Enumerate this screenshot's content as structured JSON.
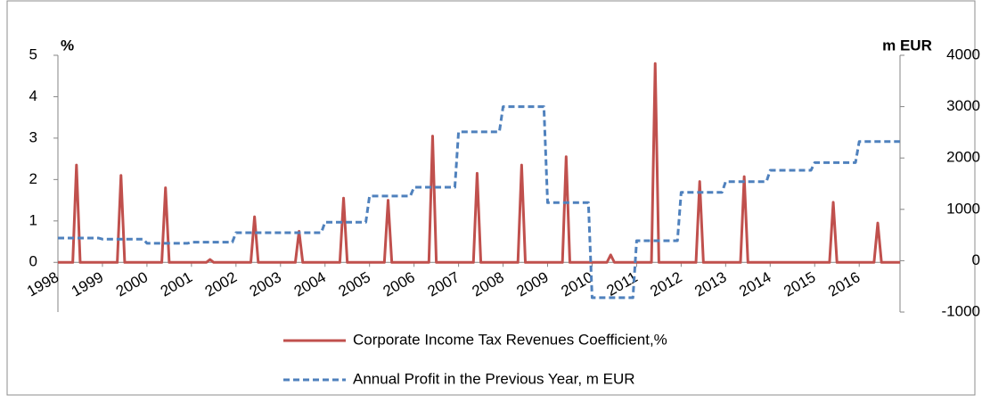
{
  "chart_data": {
    "type": "line",
    "y_label": "%",
    "y2_label": "m EUR",
    "categories": [
      "1998",
      null,
      null,
      null,
      null,
      null,
      null,
      null,
      null,
      null,
      null,
      null,
      "1999",
      null,
      null,
      null,
      null,
      null,
      null,
      null,
      null,
      null,
      null,
      null,
      "2000",
      null,
      null,
      null,
      null,
      null,
      null,
      null,
      null,
      null,
      null,
      null,
      "2001",
      null,
      null,
      null,
      null,
      null,
      null,
      null,
      null,
      null,
      null,
      null,
      "2002",
      null,
      null,
      null,
      null,
      null,
      null,
      null,
      null,
      null,
      null,
      null,
      "2003",
      null,
      null,
      null,
      null,
      null,
      null,
      null,
      null,
      null,
      null,
      null,
      "2004",
      null,
      null,
      null,
      null,
      null,
      null,
      null,
      null,
      null,
      null,
      null,
      "2005",
      null,
      null,
      null,
      null,
      null,
      null,
      null,
      null,
      null,
      null,
      null,
      "2006",
      null,
      null,
      null,
      null,
      null,
      null,
      null,
      null,
      null,
      null,
      null,
      "2007",
      null,
      null,
      null,
      null,
      null,
      null,
      null,
      null,
      null,
      null,
      null,
      "2008",
      null,
      null,
      null,
      null,
      null,
      null,
      null,
      null,
      null,
      null,
      null,
      "2009",
      null,
      null,
      null,
      null,
      null,
      null,
      null,
      null,
      null,
      null,
      null,
      "2010",
      null,
      null,
      null,
      null,
      null,
      null,
      null,
      null,
      null,
      null,
      null,
      "2011",
      null,
      null,
      null,
      null,
      null,
      null,
      null,
      null,
      null,
      null,
      null,
      "2012",
      null,
      null,
      null,
      null,
      null,
      null,
      null,
      null,
      null,
      null,
      null,
      "2013",
      null,
      null,
      null,
      null,
      null,
      null,
      null,
      null,
      null,
      null,
      null,
      "2014",
      null,
      null,
      null,
      null,
      null,
      null,
      null,
      null,
      null,
      null,
      null,
      "2015",
      null,
      null,
      null,
      null,
      null,
      null,
      null,
      null,
      null,
      null,
      null,
      "2016",
      null,
      null,
      null,
      null,
      null,
      null,
      null,
      null,
      null,
      null,
      null
    ],
    "series": [
      {
        "name": "Corporate Income Tax Revenues Coefficient,%",
        "color": "#c0504d",
        "dashed": false,
        "axis": "y",
        "values": [
          0,
          0,
          0,
          0,
          0,
          2.35,
          0,
          0,
          0,
          0,
          0,
          0,
          0,
          0,
          0,
          0,
          0,
          2.1,
          0,
          0,
          0,
          0,
          0,
          0,
          0,
          0,
          0,
          0,
          0,
          1.8,
          0,
          0,
          0,
          0,
          0,
          0,
          0,
          0,
          0,
          0,
          0,
          0.07,
          0,
          0,
          0,
          0,
          0,
          0,
          0,
          0,
          0,
          0,
          0,
          1.1,
          0,
          0,
          0,
          0,
          0,
          0,
          0,
          0,
          0,
          0,
          0,
          0.75,
          0,
          0,
          0,
          0,
          0,
          0,
          0,
          0,
          0,
          0,
          0,
          1.55,
          0,
          0,
          0,
          0,
          0,
          0,
          0,
          0,
          0,
          0,
          0,
          1.5,
          0,
          0,
          0,
          0,
          0,
          0,
          0,
          0,
          0,
          0,
          0,
          3.05,
          0,
          0,
          0,
          0,
          0,
          0,
          0,
          0,
          0,
          0,
          0,
          2.15,
          0,
          0,
          0,
          0,
          0,
          0,
          0,
          0,
          0,
          0,
          0,
          2.35,
          0,
          0,
          0,
          0,
          0,
          0,
          0,
          0,
          0,
          0,
          0,
          2.55,
          0,
          0,
          0,
          0,
          0,
          0,
          0,
          0,
          0,
          0,
          0,
          0.18,
          0,
          0,
          0,
          0,
          0,
          0,
          0,
          0,
          0,
          0,
          0,
          4.8,
          0,
          0,
          0,
          0,
          0,
          0,
          0,
          0,
          0,
          0,
          0,
          1.95,
          0,
          0,
          0,
          0,
          0,
          0,
          0,
          0,
          0,
          0,
          0,
          2.07,
          0,
          0,
          0,
          0,
          0,
          0,
          0,
          0,
          0,
          0,
          0,
          0,
          0,
          0,
          0,
          0,
          0,
          0,
          0,
          0,
          0,
          0,
          0,
          1.45,
          0,
          0,
          0,
          0,
          0,
          0,
          0,
          0,
          0,
          0,
          0,
          0.95,
          0,
          0,
          0,
          0,
          0,
          0
        ]
      },
      {
        "name": "Annual Profit in the Previous Year, m EUR",
        "color": "#4f81bd",
        "dashed": true,
        "axis": "y2",
        "values": [
          440,
          440,
          440,
          440,
          440,
          440,
          440,
          440,
          440,
          440,
          440,
          440,
          420,
          420,
          420,
          420,
          420,
          420,
          420,
          420,
          420,
          420,
          420,
          420,
          340,
          340,
          340,
          340,
          340,
          340,
          340,
          340,
          340,
          340,
          340,
          340,
          360,
          360,
          360,
          360,
          360,
          360,
          360,
          360,
          360,
          360,
          360,
          360,
          545,
          545,
          545,
          545,
          545,
          545,
          545,
          545,
          545,
          545,
          545,
          545,
          545,
          545,
          545,
          545,
          545,
          545,
          545,
          545,
          545,
          545,
          545,
          545,
          750,
          750,
          750,
          750,
          750,
          750,
          750,
          750,
          750,
          750,
          750,
          750,
          1260,
          1260,
          1260,
          1260,
          1260,
          1260,
          1260,
          1260,
          1260,
          1260,
          1260,
          1260,
          1430,
          1430,
          1430,
          1430,
          1430,
          1430,
          1430,
          1430,
          1430,
          1430,
          1430,
          1430,
          2510,
          2510,
          2510,
          2510,
          2510,
          2510,
          2510,
          2510,
          2510,
          2510,
          2510,
          2510,
          3000,
          3000,
          3000,
          3000,
          3000,
          3000,
          3000,
          3000,
          3000,
          3000,
          3000,
          3000,
          1130,
          1130,
          1130,
          1130,
          1130,
          1130,
          1130,
          1130,
          1130,
          1130,
          1130,
          1130,
          -720,
          -720,
          -720,
          -720,
          -720,
          -720,
          -720,
          -720,
          -720,
          -720,
          -720,
          -720,
          390,
          390,
          390,
          390,
          390,
          390,
          390,
          390,
          390,
          390,
          390,
          390,
          1330,
          1330,
          1330,
          1330,
          1330,
          1330,
          1330,
          1330,
          1330,
          1330,
          1330,
          1330,
          1540,
          1540,
          1540,
          1540,
          1540,
          1540,
          1540,
          1540,
          1540,
          1540,
          1540,
          1540,
          1760,
          1760,
          1760,
          1760,
          1760,
          1760,
          1760,
          1760,
          1760,
          1760,
          1760,
          1760,
          1910,
          1910,
          1910,
          1910,
          1910,
          1910,
          1910,
          1910,
          1910,
          1910,
          1910,
          1910,
          2320,
          2320,
          2320,
          2320,
          2320,
          2320,
          2320,
          2320,
          2320,
          2320,
          2320,
          2320
        ]
      }
    ],
    "ylim": [
      -1.2,
      5
    ],
    "yticks": [
      0,
      1,
      2,
      3,
      4,
      5
    ],
    "y2lim": [
      -1000,
      4000
    ],
    "y2ticks": [
      -1000,
      0,
      1000,
      2000,
      3000,
      4000
    ],
    "grid": false,
    "legend": "bottom"
  }
}
